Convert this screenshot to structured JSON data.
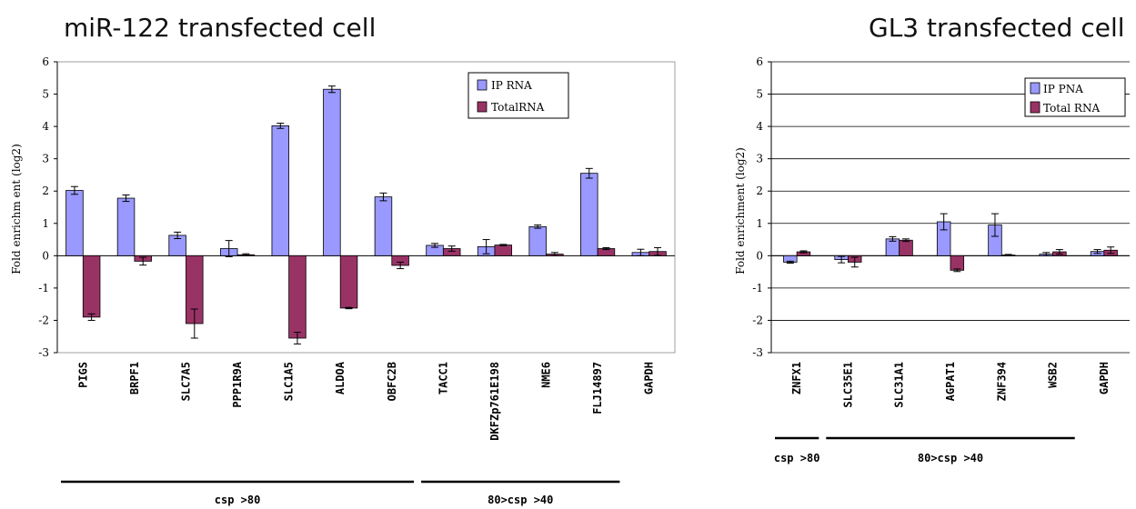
{
  "colors": {
    "ip": "#9999ff",
    "total": "#993366"
  },
  "chart_data": [
    {
      "type": "bar",
      "title": "miR-122 transfected cell",
      "ylabel": "Fold enrichm ent (log2)",
      "ylim": [
        -3,
        6
      ],
      "yticks": [
        "6",
        "5",
        "4",
        "3",
        "2",
        "1",
        "0",
        "-1",
        "-2",
        "-3"
      ],
      "grid": false,
      "legend_position": "top-right",
      "categories": [
        "PIGS",
        "BRPF1",
        "SLC7A5",
        "PPP1R9A",
        "SLC1A5",
        "ALDOA",
        "OBFC2B",
        "TACC1",
        "DKFZp761E198",
        "NME6",
        "FLJ14897",
        "GAPDH"
      ],
      "series": [
        {
          "name": "IP RNA",
          "values": [
            2.02,
            1.78,
            0.63,
            0.22,
            4.02,
            5.15,
            1.82,
            0.32,
            0.28,
            0.9,
            2.55,
            0.1
          ],
          "errors": [
            0.12,
            0.1,
            0.1,
            0.25,
            0.08,
            0.1,
            0.12,
            0.06,
            0.22,
            0.05,
            0.15,
            0.1
          ]
        },
        {
          "name": "TotalRNA",
          "values": [
            -1.9,
            -0.17,
            -2.1,
            0.03,
            -2.55,
            -1.62,
            -0.3,
            0.22,
            0.33,
            0.05,
            0.22,
            0.13
          ],
          "errors": [
            0.1,
            0.12,
            0.45,
            0.03,
            0.18,
            0.02,
            0.1,
            0.08,
            0.02,
            0.05,
            0.03,
            0.12
          ]
        }
      ],
      "groups": [
        {
          "label": "csp >80",
          "from": 0,
          "to": 6
        },
        {
          "label": "80>csp >40",
          "from": 7,
          "to": 10
        }
      ]
    },
    {
      "type": "bar",
      "title": "GL3 transfected cell",
      "ylabel": "Fold enrichment (log2)",
      "ylim": [
        -3,
        6
      ],
      "yticks": [
        "6",
        "5",
        "4",
        "3",
        "2",
        "1",
        "0",
        "-1",
        "-2",
        "-3"
      ],
      "grid": true,
      "legend_position": "top-right",
      "categories": [
        "ZNFX1",
        "SLC35E1",
        "SLC31A1",
        "AGPAT1",
        "ZNF394",
        "WSB2",
        "GAPDH"
      ],
      "series": [
        {
          "name": "IP PNA",
          "values": [
            -0.2,
            -0.12,
            0.52,
            1.05,
            0.95,
            0.05,
            0.13
          ],
          "errors": [
            0.03,
            0.1,
            0.07,
            0.25,
            0.35,
            0.05,
            0.06
          ]
        },
        {
          "name": "Total RNA",
          "values": [
            0.12,
            -0.2,
            0.48,
            -0.45,
            0.02,
            0.12,
            0.17
          ],
          "errors": [
            0.03,
            0.15,
            0.04,
            0.04,
            0.02,
            0.07,
            0.1
          ]
        }
      ],
      "groups": [
        {
          "label": "csp >80",
          "from": 0,
          "to": 0
        },
        {
          "label": "80>csp >40",
          "from": 1,
          "to": 5
        }
      ]
    }
  ]
}
